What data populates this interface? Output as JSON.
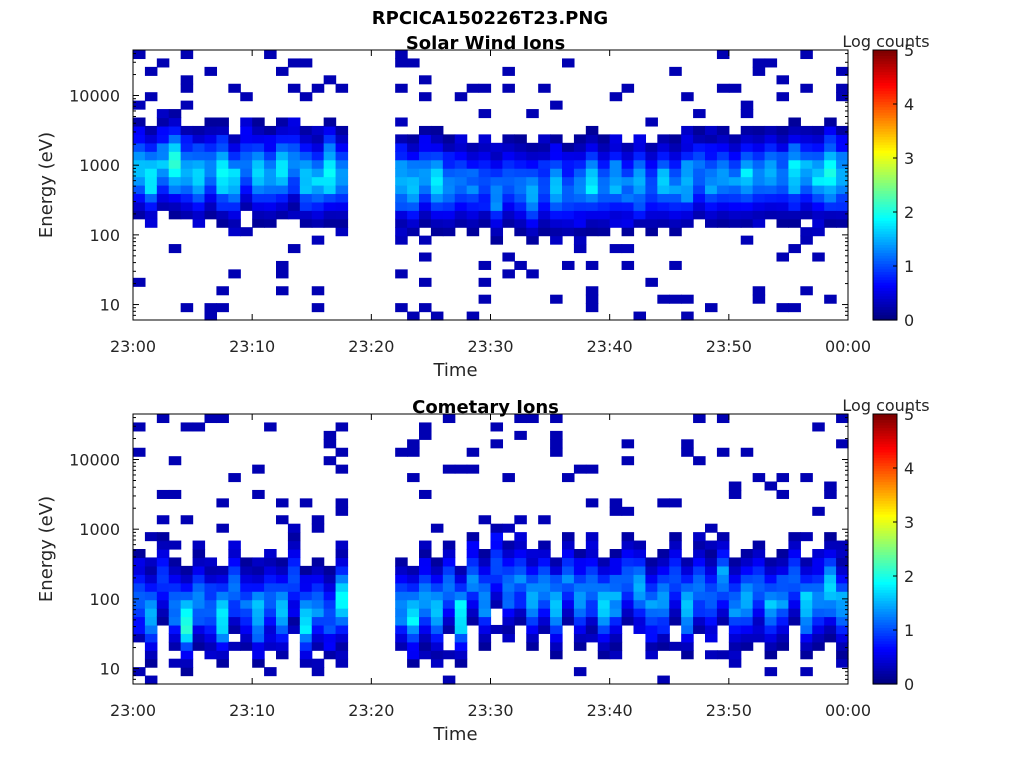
{
  "figure_title": "RPCICA150226T23.PNG",
  "colorbar_scale": [
    "#00007f",
    "#0000ff",
    "#007fff",
    "#00ffff",
    "#7fff7f",
    "#ffff00",
    "#ff7f00",
    "#ff0000",
    "#7f0000"
  ],
  "chart_data": [
    {
      "type": "heatmap",
      "title": "Solar Wind Ions",
      "xlabel": "Time",
      "ylabel": "Energy (eV)",
      "yscale": "log",
      "ylim": [
        6,
        45000
      ],
      "xlim": [
        "23:00",
        "00:00"
      ],
      "x_ticks": [
        "23:00",
        "23:10",
        "23:20",
        "23:30",
        "23:40",
        "23:50",
        "00:00"
      ],
      "y_ticks": [
        10,
        100,
        1000,
        10000
      ],
      "y_tick_labels": [
        "10",
        "100",
        "1000",
        "10000"
      ],
      "colorbar": {
        "label": "Log counts",
        "min": 0,
        "max": 5,
        "ticks": [
          "0",
          "1",
          "2",
          "3",
          "4",
          "5"
        ]
      },
      "data_gap_minutes": [
        18.5,
        22.0
      ],
      "cells": [
        {
          "t": 0.5,
          "e": 900,
          "v": 1.6
        },
        {
          "t": 1.5,
          "e": 700,
          "v": 1.8
        },
        {
          "t": 2.5,
          "e": 1000,
          "v": 1.4
        },
        {
          "t": 3.5,
          "e": 1100,
          "v": 2.1
        },
        {
          "t": 4.5,
          "e": 800,
          "v": 1.5
        },
        {
          "t": 5.5,
          "e": 700,
          "v": 1.7
        },
        {
          "t": 6.5,
          "e": 900,
          "v": 1.3
        },
        {
          "t": 7.5,
          "e": 800,
          "v": 1.9
        },
        {
          "t": 8.5,
          "e": 600,
          "v": 1.6
        },
        {
          "t": 9.5,
          "e": 1000,
          "v": 1.2
        },
        {
          "t": 10.5,
          "e": 800,
          "v": 1.7
        },
        {
          "t": 11.5,
          "e": 700,
          "v": 1.4
        },
        {
          "t": 12.5,
          "e": 900,
          "v": 1.8
        },
        {
          "t": 13.5,
          "e": 1100,
          "v": 1.3
        },
        {
          "t": 14.5,
          "e": 700,
          "v": 1.6
        },
        {
          "t": 15.5,
          "e": 600,
          "v": 1.5
        },
        {
          "t": 16.5,
          "e": 800,
          "v": 1.9
        },
        {
          "t": 17.5,
          "e": 700,
          "v": 1.4
        },
        {
          "t": 22.5,
          "e": 600,
          "v": 1.5
        },
        {
          "t": 23.5,
          "e": 500,
          "v": 1.6
        },
        {
          "t": 24.5,
          "e": 700,
          "v": 1.4
        },
        {
          "t": 25.5,
          "e": 600,
          "v": 1.8
        },
        {
          "t": 26.5,
          "e": 500,
          "v": 1.3
        },
        {
          "t": 27.5,
          "e": 600,
          "v": 1.2
        },
        {
          "t": 28.5,
          "e": 500,
          "v": 1.1
        },
        {
          "t": 29.5,
          "e": 600,
          "v": 1.0
        },
        {
          "t": 30.5,
          "e": 400,
          "v": 1.3
        },
        {
          "t": 31.5,
          "e": 600,
          "v": 1.1
        },
        {
          "t": 32.5,
          "e": 500,
          "v": 1.2
        },
        {
          "t": 33.5,
          "e": 400,
          "v": 1.5
        },
        {
          "t": 34.5,
          "e": 500,
          "v": 1.0
        },
        {
          "t": 35.5,
          "e": 500,
          "v": 1.6
        },
        {
          "t": 36.5,
          "e": 400,
          "v": 1.1
        },
        {
          "t": 37.5,
          "e": 500,
          "v": 1.3
        },
        {
          "t": 38.5,
          "e": 600,
          "v": 1.7
        },
        {
          "t": 39.5,
          "e": 500,
          "v": 1.2
        },
        {
          "t": 40.5,
          "e": 600,
          "v": 1.4
        },
        {
          "t": 41.5,
          "e": 500,
          "v": 1.1
        },
        {
          "t": 42.5,
          "e": 600,
          "v": 1.5
        },
        {
          "t": 43.5,
          "e": 500,
          "v": 1.0
        },
        {
          "t": 44.5,
          "e": 600,
          "v": 1.4
        },
        {
          "t": 45.5,
          "e": 500,
          "v": 1.2
        },
        {
          "t": 46.5,
          "e": 600,
          "v": 1.5
        },
        {
          "t": 47.5,
          "e": 700,
          "v": 1.1
        },
        {
          "t": 48.5,
          "e": 600,
          "v": 1.3
        },
        {
          "t": 49.5,
          "e": 700,
          "v": 1.4
        },
        {
          "t": 50.5,
          "e": 600,
          "v": 1.2
        },
        {
          "t": 51.5,
          "e": 700,
          "v": 1.6
        },
        {
          "t": 52.5,
          "e": 700,
          "v": 1.3
        },
        {
          "t": 53.5,
          "e": 800,
          "v": 1.5
        },
        {
          "t": 54.5,
          "e": 700,
          "v": 1.2
        },
        {
          "t": 55.5,
          "e": 800,
          "v": 1.7
        },
        {
          "t": 56.5,
          "e": 800,
          "v": 1.4
        },
        {
          "t": 57.5,
          "e": 700,
          "v": 1.6
        },
        {
          "t": 58.5,
          "e": 800,
          "v": 2.0
        },
        {
          "t": 59.5,
          "e": 700,
          "v": 1.5
        }
      ]
    },
    {
      "type": "heatmap",
      "title": "Cometary Ions",
      "xlabel": "Time",
      "ylabel": "Energy (eV)",
      "yscale": "log",
      "ylim": [
        6,
        45000
      ],
      "xlim": [
        "23:00",
        "00:00"
      ],
      "x_ticks": [
        "23:00",
        "23:10",
        "23:20",
        "23:30",
        "23:40",
        "23:50",
        "00:00"
      ],
      "y_ticks": [
        10,
        100,
        1000,
        10000
      ],
      "y_tick_labels": [
        "10",
        "100",
        "1000",
        "10000"
      ],
      "colorbar": {
        "label": "Log counts",
        "min": 0,
        "max": 5,
        "ticks": [
          "0",
          "1",
          "2",
          "3",
          "4",
          "5"
        ]
      },
      "data_gap_minutes": [
        18.5,
        22.0
      ],
      "cells": [
        {
          "t": 0.5,
          "e": 100,
          "v": 1.1
        },
        {
          "t": 1.5,
          "e": 60,
          "v": 1.5
        },
        {
          "t": 2.5,
          "e": 200,
          "v": 0.9
        },
        {
          "t": 3.5,
          "e": 80,
          "v": 1.2
        },
        {
          "t": 4.5,
          "e": 50,
          "v": 2.0
        },
        {
          "t": 5.5,
          "e": 100,
          "v": 1.3
        },
        {
          "t": 6.5,
          "e": 70,
          "v": 1.1
        },
        {
          "t": 7.5,
          "e": 60,
          "v": 1.8
        },
        {
          "t": 8.5,
          "e": 150,
          "v": 1.2
        },
        {
          "t": 9.5,
          "e": 80,
          "v": 1.0
        },
        {
          "t": 10.5,
          "e": 60,
          "v": 1.5
        },
        {
          "t": 11.5,
          "e": 100,
          "v": 1.1
        },
        {
          "t": 12.5,
          "e": 70,
          "v": 1.6
        },
        {
          "t": 13.5,
          "e": 200,
          "v": 1.0
        },
        {
          "t": 14.5,
          "e": 50,
          "v": 1.7
        },
        {
          "t": 15.5,
          "e": 80,
          "v": 1.2
        },
        {
          "t": 16.5,
          "e": 60,
          "v": 1.0
        },
        {
          "t": 17.5,
          "e": 100,
          "v": 1.9
        },
        {
          "t": 22.5,
          "e": 80,
          "v": 1.3
        },
        {
          "t": 23.5,
          "e": 60,
          "v": 1.7
        },
        {
          "t": 24.5,
          "e": 100,
          "v": 1.4
        },
        {
          "t": 25.5,
          "e": 70,
          "v": 1.6
        },
        {
          "t": 26.5,
          "e": 150,
          "v": 1.2
        },
        {
          "t": 27.5,
          "e": 60,
          "v": 1.8
        },
        {
          "t": 28.5,
          "e": 200,
          "v": 1.1
        },
        {
          "t": 29.5,
          "e": 100,
          "v": 1.3
        },
        {
          "t": 30.5,
          "e": 300,
          "v": 1.0
        },
        {
          "t": 31.5,
          "e": 150,
          "v": 1.2
        },
        {
          "t": 32.5,
          "e": 200,
          "v": 1.1
        },
        {
          "t": 33.5,
          "e": 100,
          "v": 1.5
        },
        {
          "t": 34.5,
          "e": 150,
          "v": 1.3
        },
        {
          "t": 35.5,
          "e": 80,
          "v": 1.6
        },
        {
          "t": 36.5,
          "e": 200,
          "v": 1.1
        },
        {
          "t": 37.5,
          "e": 100,
          "v": 1.4
        },
        {
          "t": 38.5,
          "e": 150,
          "v": 1.2
        },
        {
          "t": 39.5,
          "e": 80,
          "v": 1.7
        },
        {
          "t": 40.5,
          "e": 100,
          "v": 1.3
        },
        {
          "t": 41.5,
          "e": 200,
          "v": 1.1
        },
        {
          "t": 42.5,
          "e": 150,
          "v": 1.5
        },
        {
          "t": 43.5,
          "e": 80,
          "v": 1.2
        },
        {
          "t": 44.5,
          "e": 100,
          "v": 1.4
        },
        {
          "t": 45.5,
          "e": 200,
          "v": 1.0
        },
        {
          "t": 46.5,
          "e": 80,
          "v": 1.6
        },
        {
          "t": 47.5,
          "e": 150,
          "v": 1.2
        },
        {
          "t": 48.5,
          "e": 100,
          "v": 1.1
        },
        {
          "t": 49.5,
          "e": 200,
          "v": 1.3
        },
        {
          "t": 50.5,
          "e": 80,
          "v": 1.2
        },
        {
          "t": 51.5,
          "e": 100,
          "v": 1.5
        },
        {
          "t": 52.5,
          "e": 150,
          "v": 1.1
        },
        {
          "t": 53.5,
          "e": 80,
          "v": 1.4
        },
        {
          "t": 54.5,
          "e": 100,
          "v": 1.2
        },
        {
          "t": 55.5,
          "e": 200,
          "v": 1.1
        },
        {
          "t": 56.5,
          "e": 80,
          "v": 1.6
        },
        {
          "t": 57.5,
          "e": 100,
          "v": 1.3
        },
        {
          "t": 58.5,
          "e": 150,
          "v": 1.7
        },
        {
          "t": 59.5,
          "e": 80,
          "v": 1.4
        }
      ]
    }
  ]
}
